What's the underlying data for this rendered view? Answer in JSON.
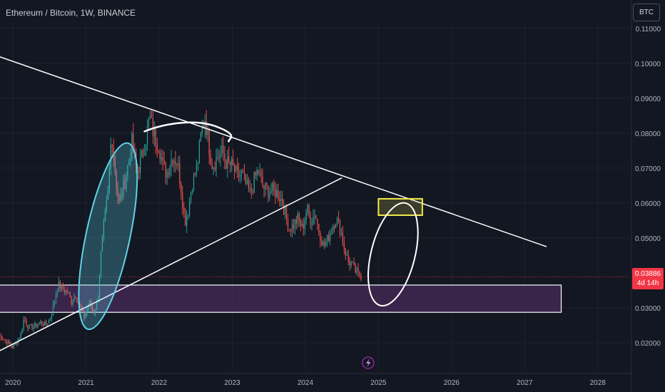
{
  "header": {
    "title": "Ethereum / Bitcoin, 1W, BINANCE"
  },
  "currency_button": {
    "label": "BTC"
  },
  "last_price": {
    "value": "0.03886",
    "countdown": "4d 14h"
  },
  "colors": {
    "background": "#131722",
    "up": "#26a69a",
    "down": "#ef5350",
    "trendline": "#ffffff",
    "zone_fill": "#5a2f6b",
    "target_box": "#f5e94c",
    "ellipse": "#5fd2e6",
    "price_badge": "#f23645"
  },
  "event_marker": {
    "icon": "lightning-icon"
  },
  "chart_data": {
    "type": "candlestick",
    "title": "Ethereum / Bitcoin, 1W, BINANCE",
    "xlabel": "",
    "ylabel": "",
    "x_ticks": [
      "2020",
      "2021",
      "2022",
      "2023",
      "2024",
      "2025",
      "2026",
      "2027",
      "2028"
    ],
    "y_ticks": [
      "0.11000",
      "0.10000",
      "0.09000",
      "0.08000",
      "0.07000",
      "0.06000",
      "0.05000",
      "0.03000",
      "0.02000"
    ],
    "ylim": [
      0.012,
      0.112
    ],
    "xlim": [
      2019.8,
      2028.6
    ],
    "grid": true,
    "path": [
      [
        2019.8,
        0.0223
      ],
      [
        2019.9,
        0.0205
      ],
      [
        2020.0,
        0.0187
      ],
      [
        2020.1,
        0.0218
      ],
      [
        2020.15,
        0.0268
      ],
      [
        2020.22,
        0.0242
      ],
      [
        2020.3,
        0.0248
      ],
      [
        2020.37,
        0.0258
      ],
      [
        2020.45,
        0.0252
      ],
      [
        2020.52,
        0.0275
      ],
      [
        2020.57,
        0.0325
      ],
      [
        2020.62,
        0.0365
      ],
      [
        2020.68,
        0.0355
      ],
      [
        2020.75,
        0.0342
      ],
      [
        2020.8,
        0.0318
      ],
      [
        2020.86,
        0.0338
      ],
      [
        2020.92,
        0.0298
      ],
      [
        2020.98,
        0.0272
      ],
      [
        2021.04,
        0.0318
      ],
      [
        2021.1,
        0.0285
      ],
      [
        2021.16,
        0.0318
      ],
      [
        2021.2,
        0.0445
      ],
      [
        2021.25,
        0.0545
      ],
      [
        2021.3,
        0.0625
      ],
      [
        2021.35,
        0.0805
      ],
      [
        2021.4,
        0.0685
      ],
      [
        2021.45,
        0.0595
      ],
      [
        2021.52,
        0.0652
      ],
      [
        2021.58,
        0.0715
      ],
      [
        2021.63,
        0.0775
      ],
      [
        2021.68,
        0.0705
      ],
      [
        2021.73,
        0.0705
      ],
      [
        2021.8,
        0.0765
      ],
      [
        2021.87,
        0.0845
      ],
      [
        2021.93,
        0.0795
      ],
      [
        2022.0,
        0.0765
      ],
      [
        2022.05,
        0.0705
      ],
      [
        2022.1,
        0.0685
      ],
      [
        2022.18,
        0.0735
      ],
      [
        2022.25,
        0.0715
      ],
      [
        2022.3,
        0.0645
      ],
      [
        2022.35,
        0.0545
      ],
      [
        2022.4,
        0.0585
      ],
      [
        2022.45,
        0.0655
      ],
      [
        2022.52,
        0.0705
      ],
      [
        2022.58,
        0.0805
      ],
      [
        2022.63,
        0.0845
      ],
      [
        2022.68,
        0.0765
      ],
      [
        2022.73,
        0.0705
      ],
      [
        2022.8,
        0.0735
      ],
      [
        2022.87,
        0.0745
      ],
      [
        2022.92,
        0.0715
      ],
      [
        2023.0,
        0.0705
      ],
      [
        2023.07,
        0.0675
      ],
      [
        2023.13,
        0.0685
      ],
      [
        2023.18,
        0.0655
      ],
      [
        2023.25,
        0.0625
      ],
      [
        2023.3,
        0.0665
      ],
      [
        2023.35,
        0.0695
      ],
      [
        2023.42,
        0.0645
      ],
      [
        2023.5,
        0.0635
      ],
      [
        2023.57,
        0.0635
      ],
      [
        2023.63,
        0.0625
      ],
      [
        2023.68,
        0.0605
      ],
      [
        2023.73,
        0.0565
      ],
      [
        2023.78,
        0.0525
      ],
      [
        2023.83,
        0.0535
      ],
      [
        2023.9,
        0.0555
      ],
      [
        2023.96,
        0.0525
      ],
      [
        2024.02,
        0.0585
      ],
      [
        2024.08,
        0.0545
      ],
      [
        2024.13,
        0.0575
      ],
      [
        2024.18,
        0.0525
      ],
      [
        2024.25,
        0.0475
      ],
      [
        2024.3,
        0.0495
      ],
      [
        2024.37,
        0.0535
      ],
      [
        2024.42,
        0.0555
      ],
      [
        2024.48,
        0.0525
      ],
      [
        2024.53,
        0.0475
      ],
      [
        2024.58,
        0.0435
      ],
      [
        2024.63,
        0.0425
      ],
      [
        2024.68,
        0.0405
      ],
      [
        2024.73,
        0.0395
      ],
      [
        2024.78,
        0.0389
      ]
    ],
    "annotations": [
      {
        "type": "trendline",
        "name": "descending-resistance",
        "from": [
          2019.8,
          0.102
        ],
        "to": [
          2027.3,
          0.0475
        ]
      },
      {
        "type": "trendline",
        "name": "ascending-support",
        "from": [
          2019.8,
          0.0175
        ],
        "to": [
          2024.5,
          0.0672
        ]
      },
      {
        "type": "zone",
        "name": "support-zone",
        "x": [
          2019.8,
          2027.5
        ],
        "y": [
          0.0287,
          0.0365
        ]
      },
      {
        "type": "box",
        "name": "target-box",
        "x": [
          2025.0,
          2025.6
        ],
        "y": [
          0.0565,
          0.0612
        ]
      },
      {
        "type": "ellipse",
        "name": "rally-ellipse",
        "center": [
          2021.3,
          0.0505
        ],
        "span_x": 0.6,
        "span_y": 0.0545
      },
      {
        "type": "ellipse",
        "name": "projection-ellipse",
        "center": [
          2025.2,
          0.0453
        ],
        "span_x": 0.6,
        "span_y": 0.0302
      },
      {
        "type": "arc",
        "name": "top-arc",
        "x": [
          2021.8,
          2022.95
        ],
        "y": 0.0805
      }
    ]
  }
}
